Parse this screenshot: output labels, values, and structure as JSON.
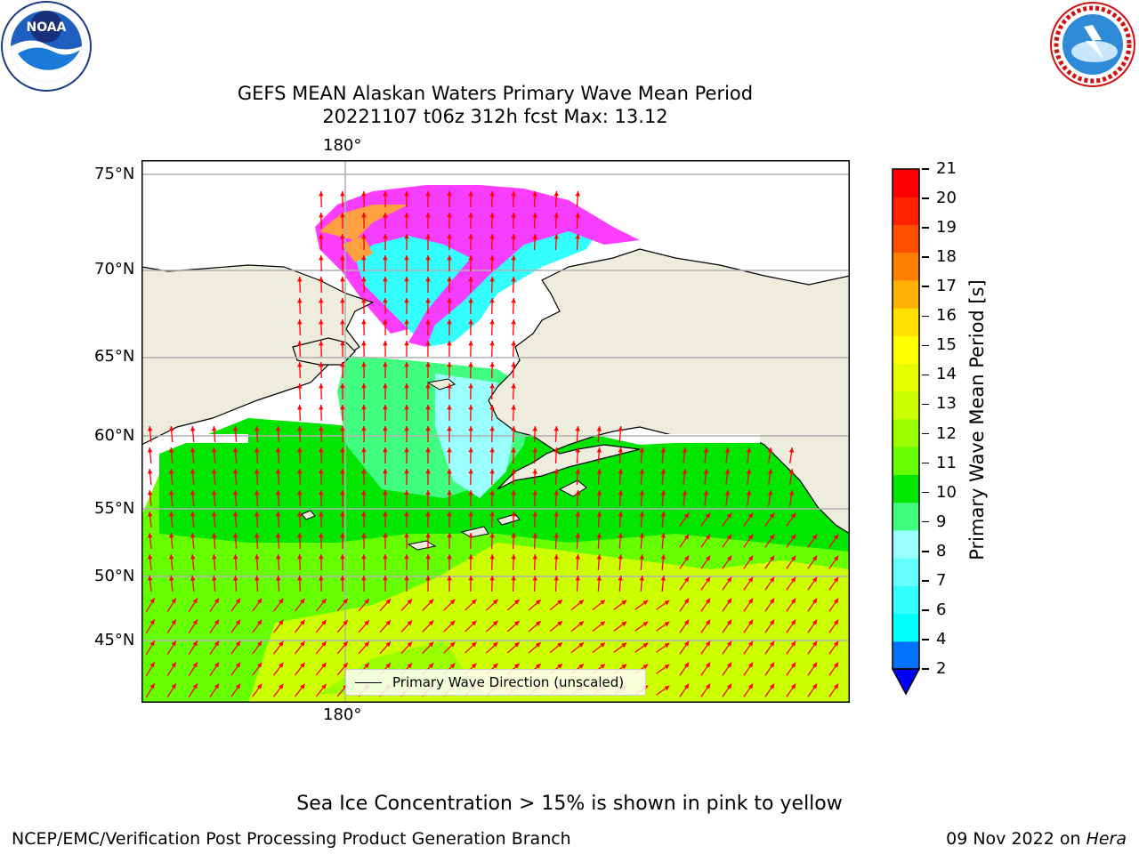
{
  "header": {
    "title_line1": "GEFS MEAN Alaskan Waters Primary Wave Mean Period",
    "title_line2": "20221107 t06z 312h fcst   Max: 13.12"
  },
  "logos": {
    "noaa": {
      "text": "NOAA",
      "ring_text": "NATIONAL OCEANIC AND ATMOSPHERIC ADMINISTRATION · U.S. DEPARTMENT OF COMMERCE"
    },
    "nws": {
      "ring_text": "NATIONAL WEATHER SERVICE"
    }
  },
  "map": {
    "lat_labels": [
      "75°N",
      "70°N",
      "65°N",
      "60°N",
      "55°N",
      "50°N",
      "45°N"
    ],
    "lon_label_top": "180°",
    "lon_label_bottom": "180°",
    "legend_label": "Primary Wave Direction (unscaled)",
    "colors": {
      "land": "#eeecdc",
      "ice_pink": "#ff33ff",
      "ice_orange": "#ffa040",
      "arrow": "#ff0000",
      "grid": "#b0b0b0"
    }
  },
  "colorbar": {
    "label": "Primary Wave Mean Period [s]",
    "ticks": [
      "2",
      "4",
      "6",
      "7",
      "8",
      "9",
      "10",
      "11",
      "12",
      "13",
      "14",
      "15",
      "16",
      "17",
      "18",
      "19",
      "20",
      "21"
    ],
    "colors": [
      "#0070ff",
      "#00ffff",
      "#33ffff",
      "#66ffff",
      "#99ffff",
      "#40ff80",
      "#00e600",
      "#66ff00",
      "#99ff00",
      "#ccff00",
      "#e6ff00",
      "#ffff00",
      "#ffe000",
      "#ffb000",
      "#ff8000",
      "#ff5000",
      "#ff2000",
      "#ff0000"
    ],
    "under_color": "#0000ff"
  },
  "footer": {
    "caption": "Sea Ice Concentration > 15% is shown in pink to yellow",
    "credit": "NCEP/EMC/Verification Post Processing Product Generation Branch",
    "date": "09 Nov 2022 on ",
    "machine": "Hera"
  }
}
